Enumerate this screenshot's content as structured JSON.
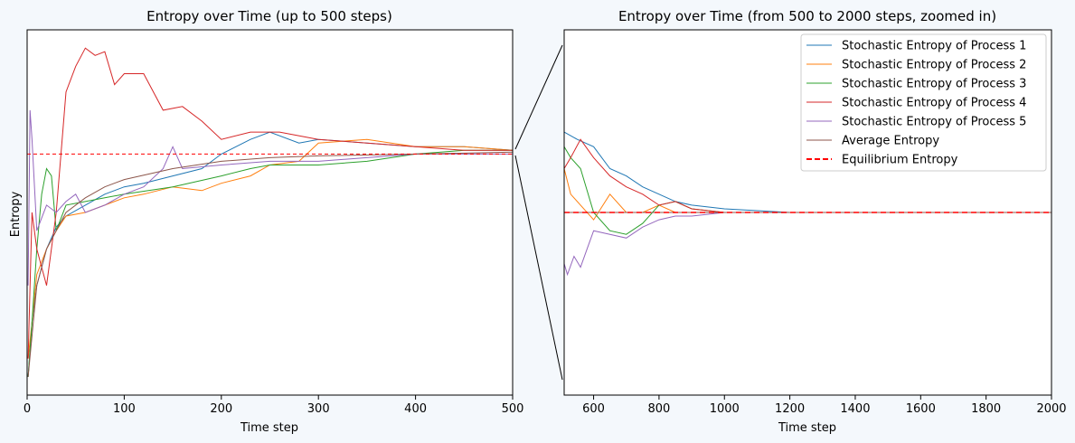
{
  "chart_data": [
    {
      "type": "line",
      "title": "Entropy over Time (up to 500 steps)",
      "xlabel": "Time step",
      "ylabel": "Entropy",
      "xlim": [
        0,
        500
      ],
      "ylim": [
        0,
        1
      ],
      "xticks": [
        0,
        100,
        200,
        300,
        400,
        500
      ],
      "xtick_labels": [
        "0",
        "100",
        "200",
        "300",
        "400",
        "500"
      ],
      "equilibrium": 0.66,
      "series": [
        {
          "name": "Stochastic Entropy of Process 1",
          "color": "#1f77b4",
          "x": [
            1,
            5,
            10,
            20,
            30,
            40,
            60,
            80,
            100,
            120,
            150,
            180,
            200,
            230,
            250,
            280,
            300,
            350,
            400,
            450,
            500
          ],
          "y": [
            0.05,
            0.2,
            0.3,
            0.4,
            0.46,
            0.49,
            0.52,
            0.55,
            0.57,
            0.58,
            0.6,
            0.62,
            0.66,
            0.7,
            0.72,
            0.69,
            0.7,
            0.69,
            0.68,
            0.68,
            0.67
          ]
        },
        {
          "name": "Stochastic Entropy of Process 2",
          "color": "#ff7f0e",
          "x": [
            1,
            5,
            10,
            20,
            30,
            40,
            60,
            80,
            100,
            120,
            150,
            180,
            200,
            230,
            250,
            280,
            300,
            350,
            400,
            450,
            500
          ],
          "y": [
            0.1,
            0.2,
            0.33,
            0.4,
            0.45,
            0.49,
            0.5,
            0.52,
            0.54,
            0.55,
            0.57,
            0.56,
            0.58,
            0.6,
            0.63,
            0.64,
            0.69,
            0.7,
            0.68,
            0.68,
            0.67
          ]
        },
        {
          "name": "Stochastic Entropy of Process 3",
          "color": "#2ca02c",
          "x": [
            1,
            5,
            10,
            15,
            20,
            25,
            30,
            40,
            60,
            80,
            100,
            150,
            200,
            230,
            250,
            300,
            350,
            400,
            450,
            500
          ],
          "y": [
            0.05,
            0.2,
            0.4,
            0.55,
            0.62,
            0.6,
            0.45,
            0.52,
            0.53,
            0.54,
            0.55,
            0.57,
            0.6,
            0.62,
            0.63,
            0.63,
            0.64,
            0.66,
            0.67,
            0.67
          ]
        },
        {
          "name": "Stochastic Entropy of Process 4",
          "color": "#d62728",
          "x": [
            1,
            5,
            10,
            15,
            20,
            30,
            40,
            50,
            60,
            70,
            80,
            90,
            100,
            120,
            140,
            160,
            180,
            200,
            230,
            260,
            300,
            350,
            400,
            450,
            500
          ],
          "y": [
            0.1,
            0.5,
            0.4,
            0.35,
            0.3,
            0.5,
            0.83,
            0.9,
            0.95,
            0.93,
            0.94,
            0.85,
            0.88,
            0.88,
            0.78,
            0.79,
            0.75,
            0.7,
            0.72,
            0.72,
            0.7,
            0.69,
            0.68,
            0.67,
            0.67
          ]
        },
        {
          "name": "Stochastic Entropy of Process 5",
          "color": "#9467bd",
          "x": [
            1,
            3,
            5,
            10,
            20,
            30,
            40,
            50,
            60,
            80,
            100,
            120,
            140,
            150,
            160,
            200,
            250,
            300,
            350,
            400,
            450,
            500
          ],
          "y": [
            0.3,
            0.78,
            0.7,
            0.45,
            0.52,
            0.5,
            0.53,
            0.55,
            0.5,
            0.52,
            0.55,
            0.57,
            0.62,
            0.68,
            0.62,
            0.63,
            0.64,
            0.64,
            0.65,
            0.66,
            0.66,
            0.66
          ]
        },
        {
          "name": "Average Entropy",
          "color": "#8c564b",
          "x": [
            1,
            10,
            20,
            40,
            60,
            80,
            100,
            150,
            200,
            250,
            300,
            400,
            500
          ],
          "y": [
            0.05,
            0.3,
            0.4,
            0.5,
            0.54,
            0.57,
            0.59,
            0.62,
            0.64,
            0.65,
            0.655,
            0.66,
            0.665
          ]
        }
      ]
    },
    {
      "type": "line",
      "title": "Entropy over Time (from 500 to 2000 steps, zoomed in)",
      "xlabel": "Time step",
      "ylabel": "",
      "xlim": [
        510,
        2000
      ],
      "ylim": [
        0,
        1
      ],
      "xticks": [
        600,
        800,
        1000,
        1200,
        1400,
        1600,
        1800,
        2000
      ],
      "xtick_labels": [
        "600",
        "800",
        "1000",
        "1200",
        "1400",
        "1600",
        "1800",
        "2000"
      ],
      "equilibrium": 0.5,
      "legend_position": "top-right",
      "series": [
        {
          "name": "Stochastic Entropy of Process 1",
          "color": "#1f77b4",
          "x": [
            510,
            550,
            600,
            650,
            700,
            750,
            800,
            850,
            900,
            1000,
            1100,
            1200,
            1400,
            2000
          ],
          "y": [
            0.72,
            0.7,
            0.68,
            0.62,
            0.6,
            0.57,
            0.55,
            0.53,
            0.52,
            0.51,
            0.505,
            0.5,
            0.5,
            0.5
          ]
        },
        {
          "name": "Stochastic Entropy of Process 2",
          "color": "#ff7f0e",
          "x": [
            510,
            530,
            560,
            600,
            650,
            700,
            750,
            800,
            850,
            900,
            1000,
            1100,
            1200,
            2000
          ],
          "y": [
            0.62,
            0.55,
            0.52,
            0.48,
            0.55,
            0.5,
            0.5,
            0.52,
            0.5,
            0.5,
            0.5,
            0.5,
            0.5,
            0.5
          ]
        },
        {
          "name": "Stochastic Entropy of Process 3",
          "color": "#2ca02c",
          "x": [
            510,
            530,
            560,
            600,
            650,
            700,
            750,
            800,
            850,
            900,
            1000,
            1100,
            1200,
            2000
          ],
          "y": [
            0.68,
            0.65,
            0.62,
            0.5,
            0.45,
            0.44,
            0.47,
            0.52,
            0.53,
            0.51,
            0.5,
            0.5,
            0.5,
            0.5
          ]
        },
        {
          "name": "Stochastic Entropy of Process 4",
          "color": "#d62728",
          "x": [
            510,
            530,
            560,
            600,
            650,
            700,
            750,
            800,
            850,
            900,
            1000,
            1100,
            1200,
            2000
          ],
          "y": [
            0.62,
            0.65,
            0.7,
            0.65,
            0.6,
            0.57,
            0.55,
            0.52,
            0.53,
            0.51,
            0.5,
            0.5,
            0.5,
            0.5
          ]
        },
        {
          "name": "Stochastic Entropy of Process 5",
          "color": "#9467bd",
          "x": [
            510,
            520,
            540,
            560,
            580,
            600,
            650,
            700,
            750,
            800,
            850,
            900,
            1000,
            1100,
            1200,
            2000
          ],
          "y": [
            0.36,
            0.33,
            0.38,
            0.35,
            0.4,
            0.45,
            0.44,
            0.43,
            0.46,
            0.48,
            0.49,
            0.49,
            0.5,
            0.5,
            0.5,
            0.5
          ]
        },
        {
          "name": "Average Entropy",
          "color": "#8c564b",
          "x": [
            510,
            600,
            700,
            800,
            900,
            1000,
            1200,
            2000
          ],
          "y": [
            0.5,
            0.5,
            0.5,
            0.5,
            0.5,
            0.5,
            0.5,
            0.5
          ]
        }
      ]
    }
  ],
  "legend": {
    "entries": [
      {
        "label": "Stochastic Entropy of Process 1",
        "color": "#1f77b4",
        "style": "solid"
      },
      {
        "label": "Stochastic Entropy of Process 2",
        "color": "#ff7f0e",
        "style": "solid"
      },
      {
        "label": "Stochastic Entropy of Process 3",
        "color": "#2ca02c",
        "style": "solid"
      },
      {
        "label": "Stochastic Entropy of Process 4",
        "color": "#d62728",
        "style": "solid"
      },
      {
        "label": "Stochastic Entropy of Process 5",
        "color": "#9467bd",
        "style": "solid"
      },
      {
        "label": "Average Entropy",
        "color": "#8c564b",
        "style": "solid"
      },
      {
        "label": "Equilibrium Entropy",
        "color": "#ff0000",
        "style": "dashed"
      }
    ]
  },
  "colors": {
    "equilibrium": "#ff0000",
    "background": "#f4f8fc"
  }
}
